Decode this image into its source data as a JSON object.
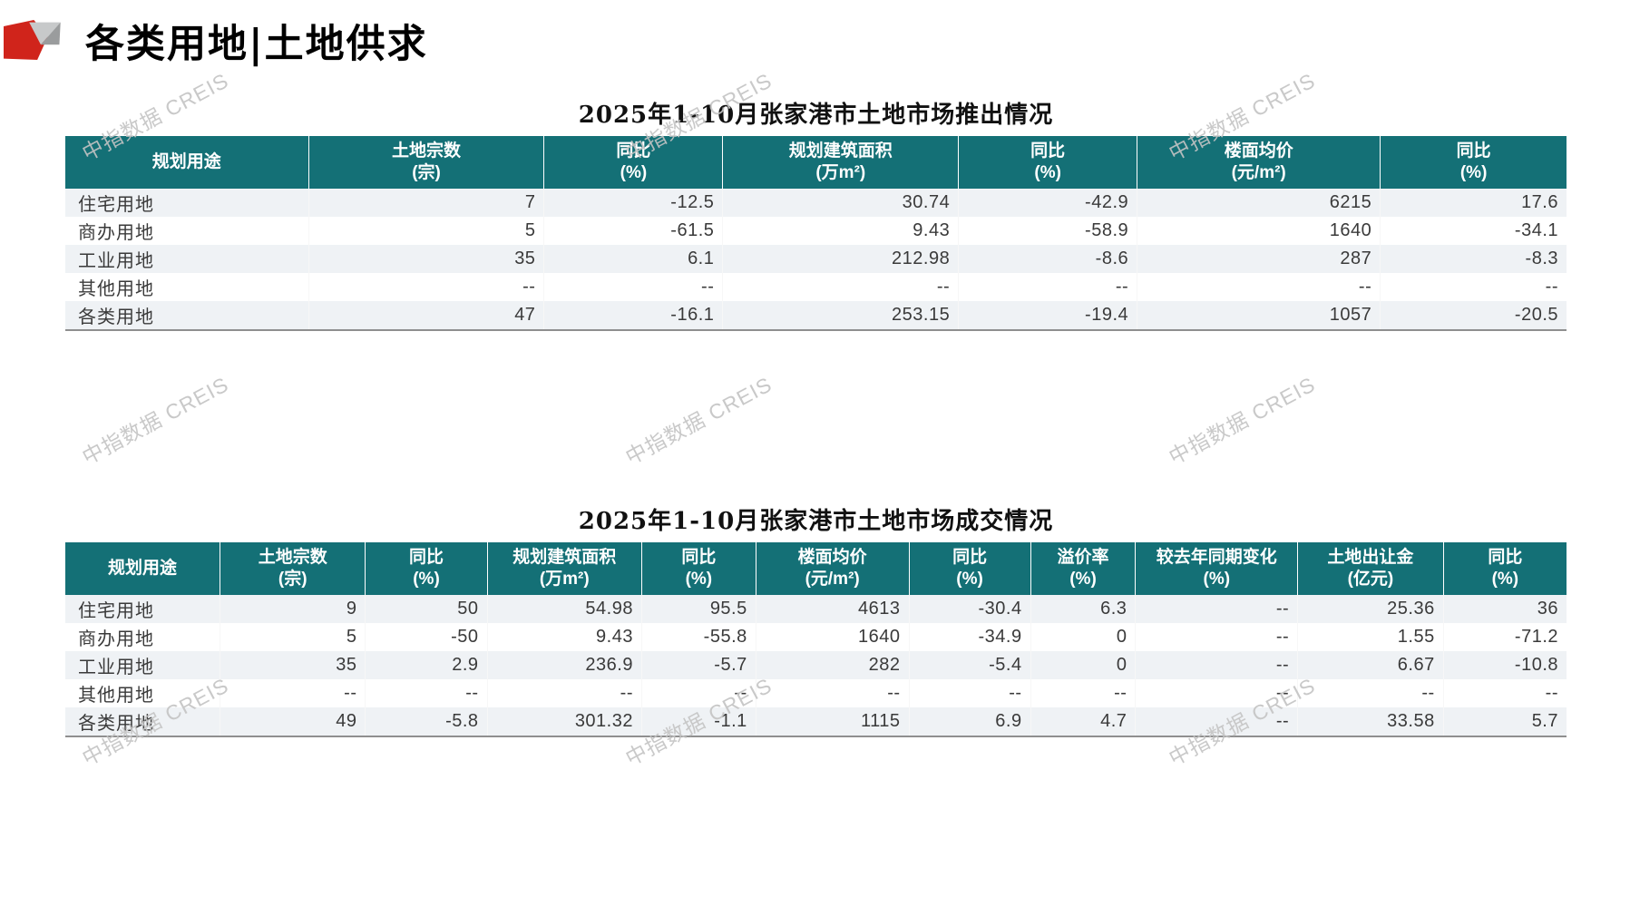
{
  "page": {
    "title": "各类用地|土地供求"
  },
  "watermark": {
    "text": "中指数据 CREIS"
  },
  "colors": {
    "header_teal": "#147076",
    "row_alt": "#eff2f5",
    "logo_red": "#d0241b",
    "logo_gray_light": "#c7c9ca",
    "logo_gray_dark": "#9a9c9d",
    "watermark_gray": "#c4c4c4"
  },
  "tables": [
    {
      "title": "2025年1-10月张家港市土地市场推出情况",
      "columns": [
        {
          "label": "规划用途",
          "unit": ""
        },
        {
          "label": "土地宗数",
          "unit": "(宗)"
        },
        {
          "label": "同比",
          "unit": "(%)"
        },
        {
          "label": "规划建筑面积",
          "unit": "(万m²)"
        },
        {
          "label": "同比",
          "unit": "(%)"
        },
        {
          "label": "楼面均价",
          "unit": "(元/m²)"
        },
        {
          "label": "同比",
          "unit": "(%)"
        }
      ],
      "rows": [
        [
          "住宅用地",
          "7",
          "-12.5",
          "30.74",
          "-42.9",
          "6215",
          "17.6"
        ],
        [
          "商办用地",
          "5",
          "-61.5",
          "9.43",
          "-58.9",
          "1640",
          "-34.1"
        ],
        [
          "工业用地",
          "35",
          "6.1",
          "212.98",
          "-8.6",
          "287",
          "-8.3"
        ],
        [
          "其他用地",
          "--",
          "--",
          "--",
          "--",
          "--",
          "--"
        ],
        [
          "各类用地",
          "47",
          "-16.1",
          "253.15",
          "-19.4",
          "1057",
          "-20.5"
        ]
      ]
    },
    {
      "title": "2025年1-10月张家港市土地市场成交情况",
      "columns": [
        {
          "label": "规划用途",
          "unit": ""
        },
        {
          "label": "土地宗数",
          "unit": "(宗)"
        },
        {
          "label": "同比",
          "unit": "(%)"
        },
        {
          "label": "规划建筑面积",
          "unit": "(万m²)"
        },
        {
          "label": "同比",
          "unit": "(%)"
        },
        {
          "label": "楼面均价",
          "unit": "(元/m²)"
        },
        {
          "label": "同比",
          "unit": "(%)"
        },
        {
          "label": "溢价率",
          "unit": "(%)"
        },
        {
          "label": "较去年同期变化",
          "unit": "(%)"
        },
        {
          "label": "土地出让金",
          "unit": "(亿元)"
        },
        {
          "label": "同比",
          "unit": "(%)"
        }
      ],
      "rows": [
        [
          "住宅用地",
          "9",
          "50",
          "54.98",
          "95.5",
          "4613",
          "-30.4",
          "6.3",
          "--",
          "25.36",
          "36"
        ],
        [
          "商办用地",
          "5",
          "-50",
          "9.43",
          "-55.8",
          "1640",
          "-34.9",
          "0",
          "--",
          "1.55",
          "-71.2"
        ],
        [
          "工业用地",
          "35",
          "2.9",
          "236.9",
          "-5.7",
          "282",
          "-5.4",
          "0",
          "--",
          "6.67",
          "-10.8"
        ],
        [
          "其他用地",
          "--",
          "--",
          "--",
          "--",
          "--",
          "--",
          "--",
          "--",
          "--",
          "--"
        ],
        [
          "各类用地",
          "49",
          "-5.8",
          "301.32",
          "-1.1",
          "1115",
          "6.9",
          "4.7",
          "--",
          "33.58",
          "5.7"
        ]
      ]
    }
  ]
}
